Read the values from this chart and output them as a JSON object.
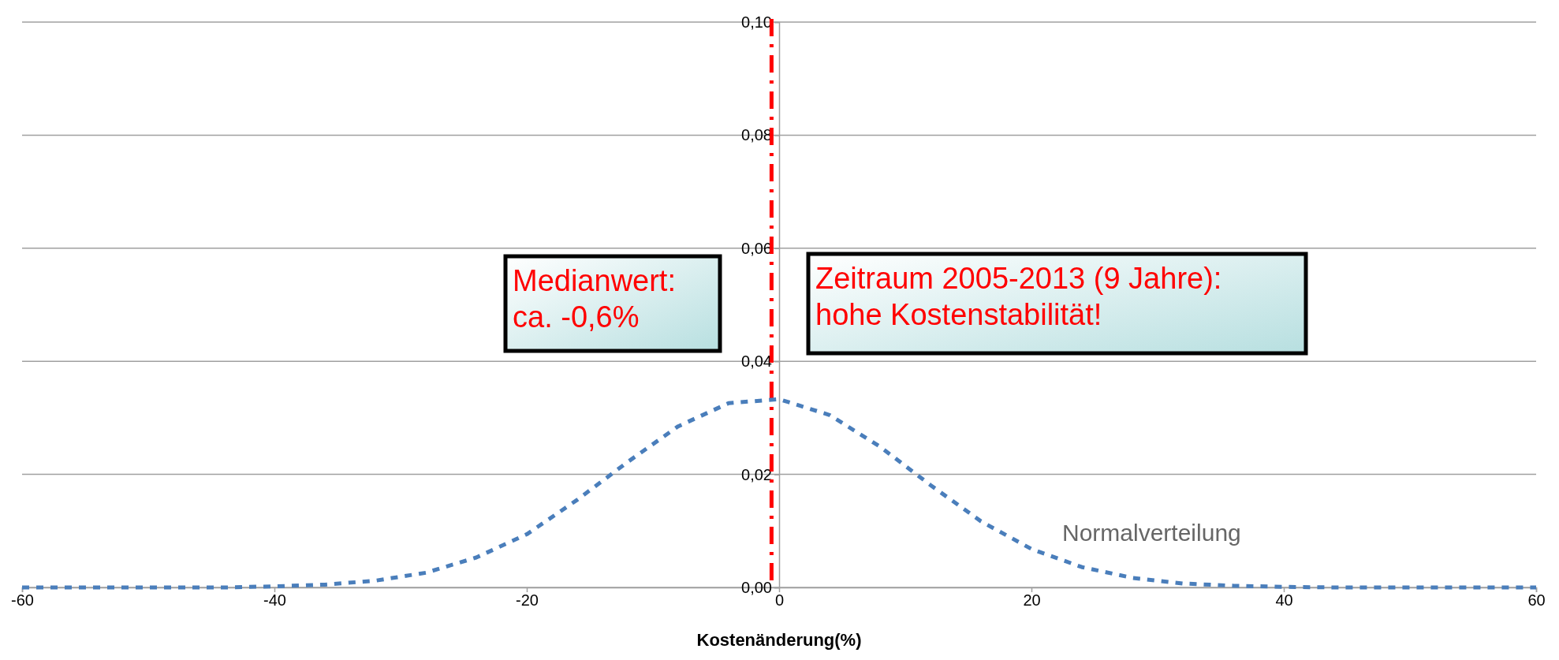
{
  "chart_data": {
    "type": "line",
    "xlabel": "Kostenänderung(%)",
    "x": [
      -60,
      -56,
      -52,
      -48,
      -44,
      -40,
      -36,
      -32,
      -28,
      -24,
      -20,
      -16,
      -12,
      -8,
      -4,
      0,
      4,
      8,
      12,
      16,
      20,
      24,
      28,
      32,
      36,
      40,
      44,
      48,
      52,
      56,
      60
    ],
    "series": [
      {
        "name": "Normalverteilung",
        "color": "#4a7ebb",
        "values": [
          0,
          0,
          0,
          0,
          0,
          0.0002,
          0.0005,
          0.0012,
          0.0026,
          0.0053,
          0.0094,
          0.0155,
          0.0222,
          0.0285,
          0.0326,
          0.0333,
          0.0305,
          0.0249,
          0.0181,
          0.0117,
          0.0068,
          0.0036,
          0.0017,
          0.0007,
          0.0003,
          0.0001,
          0,
          0,
          0,
          0,
          0
        ]
      }
    ],
    "line_style": "dashed",
    "marker": "none",
    "grid": "y",
    "legend": false,
    "xlim": [
      -60,
      60
    ],
    "xticks": [
      -60,
      -40,
      -20,
      0,
      20,
      40,
      60
    ],
    "ylim": [
      0,
      0.1
    ],
    "yticks": [
      {
        "value": 0,
        "label": "0,00"
      },
      {
        "value": 0.02,
        "label": "0,02"
      },
      {
        "value": 0.04,
        "label": "0,04"
      },
      {
        "value": 0.06,
        "label": "0,06"
      },
      {
        "value": 0.08,
        "label": "0,08"
      },
      {
        "value": 0.1,
        "label": "0,10"
      }
    ],
    "ref_lines": [
      {
        "axis": "x",
        "value": -0.6,
        "color": "#ff0000",
        "line_style": "dashdot"
      }
    ],
    "annotations": [
      "Medianwert:\nca. -0,6%",
      "Zeitraum 2005-2013 (9 Jahre):\nhohe Kostenstabilität!"
    ]
  }
}
